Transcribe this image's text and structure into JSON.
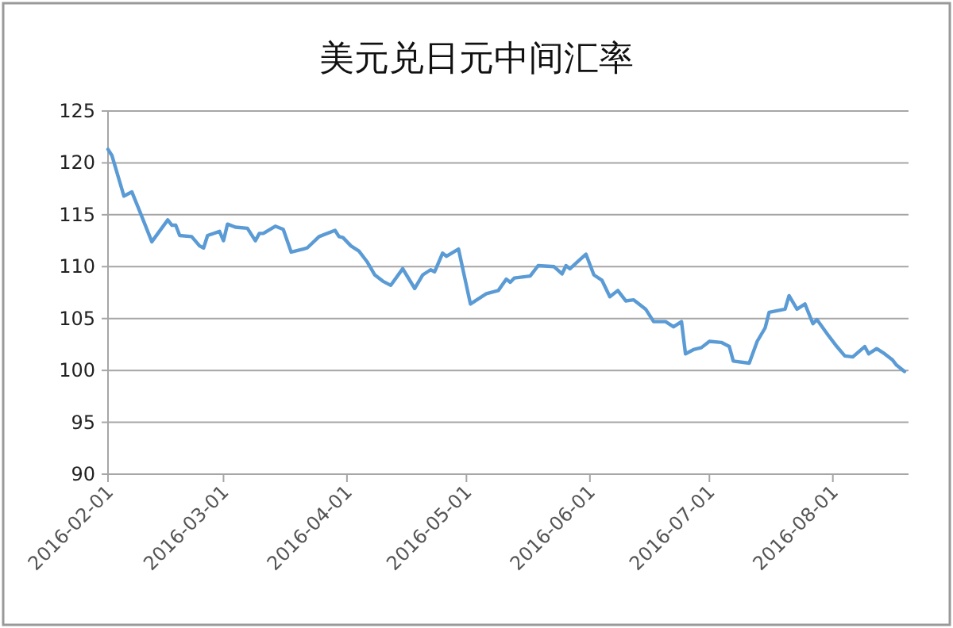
{
  "chart_data": {
    "type": "line",
    "title": "美元兑日元中间汇率",
    "x": [
      "2016-02-01",
      "2016-02-02",
      "2016-02-05",
      "2016-02-07",
      "2016-02-09",
      "2016-02-12",
      "2016-02-16",
      "2016-02-17",
      "2016-02-18",
      "2016-02-19",
      "2016-02-22",
      "2016-02-24",
      "2016-02-25",
      "2016-02-26",
      "2016-02-29",
      "2016-03-01",
      "2016-03-02",
      "2016-03-04",
      "2016-03-07",
      "2016-03-09",
      "2016-03-10",
      "2016-03-11",
      "2016-03-14",
      "2016-03-16",
      "2016-03-18",
      "2016-03-21",
      "2016-03-22",
      "2016-03-25",
      "2016-03-29",
      "2016-03-30",
      "2016-03-31",
      "2016-04-02",
      "2016-04-04",
      "2016-04-06",
      "2016-04-08",
      "2016-04-10",
      "2016-04-12",
      "2016-04-15",
      "2016-04-18",
      "2016-04-20",
      "2016-04-22",
      "2016-04-23",
      "2016-04-25",
      "2016-04-26",
      "2016-04-29",
      "2016-05-02",
      "2016-05-06",
      "2016-05-09",
      "2016-05-11",
      "2016-05-12",
      "2016-05-13",
      "2016-05-17",
      "2016-05-19",
      "2016-05-23",
      "2016-05-25",
      "2016-05-26",
      "2016-05-27",
      "2016-05-29",
      "2016-05-31",
      "2016-06-02",
      "2016-06-04",
      "2016-06-06",
      "2016-06-08",
      "2016-06-10",
      "2016-06-12",
      "2016-06-15",
      "2016-06-17",
      "2016-06-20",
      "2016-06-22",
      "2016-06-24",
      "2016-06-25",
      "2016-06-27",
      "2016-06-29",
      "2016-07-01",
      "2016-07-04",
      "2016-07-06",
      "2016-07-07",
      "2016-07-11",
      "2016-07-13",
      "2016-07-15",
      "2016-07-16",
      "2016-07-20",
      "2016-07-21",
      "2016-07-23",
      "2016-07-25",
      "2016-07-27",
      "2016-07-28",
      "2016-07-31",
      "2016-08-02",
      "2016-08-04",
      "2016-08-06",
      "2016-08-09",
      "2016-08-10",
      "2016-08-12",
      "2016-08-14",
      "2016-08-16",
      "2016-08-17",
      "2016-08-19"
    ],
    "values": [
      121.3,
      120.7,
      116.8,
      117.2,
      115.3,
      112.4,
      114.5,
      114.0,
      114.0,
      113.0,
      112.9,
      112.0,
      111.8,
      113.0,
      113.4,
      112.5,
      114.1,
      113.8,
      113.7,
      112.5,
      113.2,
      113.2,
      113.9,
      113.6,
      111.4,
      111.7,
      111.8,
      112.9,
      113.5,
      112.9,
      112.8,
      112.0,
      111.5,
      110.5,
      109.2,
      108.6,
      108.2,
      109.8,
      107.9,
      109.2,
      109.7,
      109.5,
      111.3,
      111.0,
      111.7,
      106.4,
      107.4,
      107.7,
      108.8,
      108.5,
      108.9,
      109.1,
      110.1,
      110.0,
      109.3,
      110.1,
      109.8,
      110.5,
      111.2,
      109.2,
      108.7,
      107.1,
      107.7,
      106.7,
      106.8,
      105.9,
      104.7,
      104.7,
      104.2,
      104.7,
      101.6,
      102.0,
      102.2,
      102.8,
      102.7,
      102.3,
      100.9,
      100.7,
      102.8,
      104.1,
      105.6,
      105.9,
      107.2,
      105.9,
      106.4,
      104.5,
      104.9,
      103.3,
      102.3,
      101.4,
      101.3,
      102.3,
      101.6,
      102.1,
      101.6,
      101.0,
      100.5,
      99.9
    ],
    "color": "#5b9bd5",
    "xlim": [
      "2016-02-01",
      "2016-08-20"
    ],
    "xticks": [
      "2016-02-01",
      "2016-03-01",
      "2016-04-01",
      "2016-05-01",
      "2016-06-01",
      "2016-07-01",
      "2016-08-01"
    ],
    "ylim": [
      90,
      125
    ],
    "yticks": [
      90,
      95,
      100,
      105,
      110,
      115,
      120,
      125
    ],
    "grid": "y",
    "marker": "none",
    "line_style": "solid"
  }
}
